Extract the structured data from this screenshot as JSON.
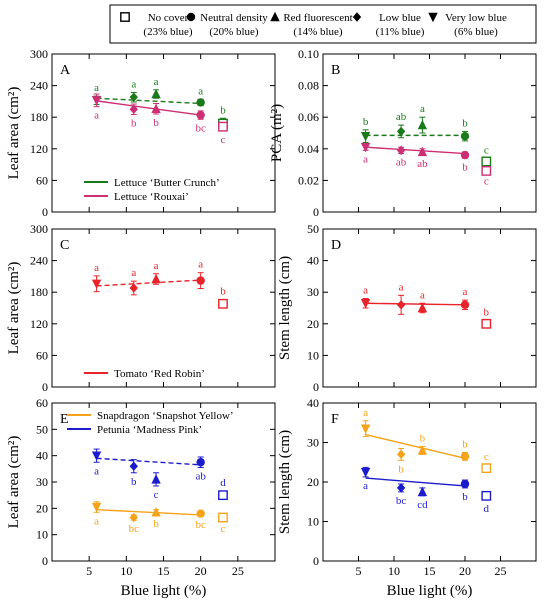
{
  "legend": {
    "items": [
      {
        "shape": "square-open",
        "line1": "No cover",
        "line2": "(23% blue)"
      },
      {
        "shape": "circle",
        "line1": "Neutral density",
        "line2": "(20% blue)"
      },
      {
        "shape": "triangle-up",
        "line1": "Red fluorescent",
        "line2": "(14% blue)"
      },
      {
        "shape": "diamond",
        "line1": "Low blue",
        "line2": "(11% blue)"
      },
      {
        "shape": "triangle-down",
        "line1": "Very low blue",
        "line2": "(6% blue)"
      }
    ]
  },
  "colors": {
    "lettuce_butter_crunch": "#1a7a1a",
    "lettuce_rouxai": "#cc2f73",
    "tomato": "#e8232a",
    "snapdragon": "#f5a31a",
    "petunia": "#1c1ccc"
  },
  "chart_data": [
    {
      "type": "scatter",
      "panel": "A",
      "xlabel": "",
      "ylabel": "Leaf area (cm²)",
      "xlim": [
        0,
        30
      ],
      "ylim": [
        0,
        300
      ],
      "xticks": [
        5,
        10,
        15,
        20,
        25
      ],
      "yticks": [
        0,
        60,
        120,
        180,
        240,
        300
      ],
      "legend": [
        {
          "name": "Lettuce ‘Butter Crunch’",
          "color": "#1a7a1a"
        },
        {
          "name": "Lettuce ‘Rouxai’",
          "color": "#cc2f73"
        }
      ],
      "series": [
        {
          "name": "Lettuce ‘Butter Crunch’",
          "color": "#1a7a1a",
          "dash": true,
          "points": [
            {
              "x": 6,
              "y": 212,
              "err": 8,
              "shape": "triangle-down",
              "letter": "a",
              "lpos": "above"
            },
            {
              "x": 11,
              "y": 218,
              "err": 9,
              "shape": "diamond",
              "letter": "a",
              "lpos": "above"
            },
            {
              "x": 14,
              "y": 224,
              "err": 8,
              "shape": "triangle-up",
              "letter": "a",
              "lpos": "above"
            },
            {
              "x": 20,
              "y": 208,
              "err": 6,
              "shape": "circle",
              "letter": "a",
              "lpos": "above"
            },
            {
              "x": 23,
              "y": 168,
              "err": 10,
              "shape": "square-open",
              "letter": "b",
              "lpos": "above"
            }
          ],
          "fit": [
            [
              6,
              216
            ],
            [
              20,
              206
            ]
          ]
        },
        {
          "name": "Lettuce ‘Rouxai’",
          "color": "#cc2f73",
          "dash": false,
          "points": [
            {
              "x": 6,
              "y": 212,
              "err": 12,
              "shape": "triangle-down",
              "letter": "a",
              "lpos": "below"
            },
            {
              "x": 11,
              "y": 195,
              "err": 10,
              "shape": "diamond",
              "letter": "b",
              "lpos": "below"
            },
            {
              "x": 14,
              "y": 196,
              "err": 10,
              "shape": "triangle-up",
              "letter": "b",
              "lpos": "below"
            },
            {
              "x": 20,
              "y": 184,
              "err": 8,
              "shape": "circle",
              "letter": "bc",
              "lpos": "below"
            },
            {
              "x": 23,
              "y": 162,
              "err": 8,
              "shape": "square-open",
              "letter": "c",
              "lpos": "below"
            }
          ],
          "fit": [
            [
              6,
              211
            ],
            [
              20,
              184
            ]
          ]
        }
      ]
    },
    {
      "type": "scatter",
      "panel": "B",
      "xlabel": "",
      "ylabel": "PCA (m²)",
      "xlim": [
        0,
        30
      ],
      "ylim": [
        0,
        0.1
      ],
      "xticks": [
        5,
        10,
        15,
        20,
        25
      ],
      "yticks": [
        0,
        0.02,
        0.04,
        0.06,
        0.08,
        0.1
      ],
      "ytick_labels": [
        "0",
        "0.02",
        "0.04",
        "0.06",
        "0.08",
        "0.10"
      ],
      "series": [
        {
          "name": "Lettuce ‘Butter Crunch’",
          "color": "#1a7a1a",
          "dash": true,
          "points": [
            {
              "x": 6,
              "y": 0.048,
              "err": 0.004,
              "shape": "triangle-down",
              "letter": "b",
              "lpos": "above"
            },
            {
              "x": 11,
              "y": 0.051,
              "err": 0.004,
              "shape": "diamond",
              "letter": "ab",
              "lpos": "above"
            },
            {
              "x": 14,
              "y": 0.055,
              "err": 0.005,
              "shape": "triangle-up",
              "letter": "a",
              "lpos": "above"
            },
            {
              "x": 20,
              "y": 0.048,
              "err": 0.003,
              "shape": "circle",
              "letter": "b",
              "lpos": "above"
            },
            {
              "x": 23,
              "y": 0.032,
              "err": 0.002,
              "shape": "square-open",
              "letter": "c",
              "lpos": "above"
            }
          ],
          "fit": [
            [
              6,
              0.0485
            ],
            [
              20,
              0.0485
            ]
          ]
        },
        {
          "name": "Lettuce ‘Rouxai’",
          "color": "#cc2f73",
          "dash": false,
          "points": [
            {
              "x": 6,
              "y": 0.041,
              "err": 0.002,
              "shape": "triangle-down",
              "letter": "a",
              "lpos": "below"
            },
            {
              "x": 11,
              "y": 0.039,
              "err": 0.002,
              "shape": "diamond",
              "letter": "ab",
              "lpos": "below"
            },
            {
              "x": 14,
              "y": 0.038,
              "err": 0.002,
              "shape": "triangle-up",
              "letter": "ab",
              "lpos": "below"
            },
            {
              "x": 20,
              "y": 0.036,
              "err": 0.002,
              "shape": "circle",
              "letter": "b",
              "lpos": "below"
            },
            {
              "x": 23,
              "y": 0.026,
              "err": 0.001,
              "shape": "square-open",
              "letter": "c",
              "lpos": "below"
            }
          ],
          "fit": [
            [
              6,
              0.041
            ],
            [
              20,
              0.037
            ]
          ]
        }
      ]
    },
    {
      "type": "scatter",
      "panel": "C",
      "xlabel": "",
      "ylabel": "Leaf area (cm²)",
      "xlim": [
        0,
        30
      ],
      "ylim": [
        0,
        300
      ],
      "xticks": [
        5,
        10,
        15,
        20,
        25
      ],
      "yticks": [
        0,
        60,
        120,
        180,
        240,
        300
      ],
      "legend": [
        {
          "name": "Tomato ‘Red Robin’",
          "color": "#e8232a"
        }
      ],
      "series": [
        {
          "name": "Tomato ‘Red Robin’",
          "color": "#e8232a",
          "dash": true,
          "points": [
            {
              "x": 6,
              "y": 196,
              "err": 15,
              "shape": "triangle-down",
              "letter": "a",
              "lpos": "above"
            },
            {
              "x": 11,
              "y": 188,
              "err": 13,
              "shape": "diamond",
              "letter": "a",
              "lpos": "above"
            },
            {
              "x": 14,
              "y": 205,
              "err": 10,
              "shape": "triangle-up",
              "letter": "a",
              "lpos": "above"
            },
            {
              "x": 20,
              "y": 202,
              "err": 15,
              "shape": "circle",
              "letter": "a",
              "lpos": "above"
            },
            {
              "x": 23,
              "y": 158,
              "err": 8,
              "shape": "square-open",
              "letter": "b",
              "lpos": "above"
            }
          ],
          "fit": [
            [
              6,
              192
            ],
            [
              20,
              203
            ]
          ]
        }
      ]
    },
    {
      "type": "scatter",
      "panel": "D",
      "xlabel": "",
      "ylabel": "Stem length (cm)",
      "xlim": [
        0,
        30
      ],
      "ylim": [
        0,
        50
      ],
      "xticks": [
        5,
        10,
        15,
        20,
        25
      ],
      "yticks": [
        0,
        10,
        20,
        30,
        40,
        50
      ],
      "series": [
        {
          "name": "Tomato ‘Red Robin’",
          "color": "#e8232a",
          "dash": false,
          "points": [
            {
              "x": 6,
              "y": 26.5,
              "err": 1.5,
              "shape": "triangle-down",
              "letter": "a",
              "lpos": "above"
            },
            {
              "x": 11,
              "y": 26.0,
              "err": 3.0,
              "shape": "diamond",
              "letter": "a",
              "lpos": "above"
            },
            {
              "x": 14,
              "y": 25.0,
              "err": 1.5,
              "shape": "triangle-up",
              "letter": "a",
              "lpos": "above"
            },
            {
              "x": 20,
              "y": 26.0,
              "err": 1.5,
              "shape": "circle",
              "letter": "a",
              "lpos": "above"
            },
            {
              "x": 23,
              "y": 20.0,
              "err": 1.0,
              "shape": "square-open",
              "letter": "b",
              "lpos": "above"
            }
          ],
          "fit": [
            [
              6,
              26.5
            ],
            [
              20,
              26.0
            ]
          ]
        }
      ]
    },
    {
      "type": "scatter",
      "panel": "E",
      "xlabel": "Blue light (%)",
      "ylabel": "Leaf area (cm²)",
      "xlim": [
        0,
        30
      ],
      "ylim": [
        0,
        60
      ],
      "xticks": [
        5,
        10,
        15,
        20,
        25
      ],
      "yticks": [
        0,
        10,
        20,
        30,
        40,
        50,
        60
      ],
      "legend": [
        {
          "name": "Snapdragon ‘Snapshot Yellow’",
          "color": "#f5a31a"
        },
        {
          "name": "Petunia ‘Madness Pink’",
          "color": "#1c1ccc"
        }
      ],
      "series": [
        {
          "name": "Petunia ‘Madness Pink’",
          "color": "#1c1ccc",
          "dash": true,
          "points": [
            {
              "x": 6,
              "y": 40,
              "err": 2.5,
              "shape": "triangle-down",
              "letter": "a",
              "lpos": "below"
            },
            {
              "x": 11,
              "y": 36,
              "err": 2.5,
              "shape": "diamond",
              "letter": "b",
              "lpos": "below"
            },
            {
              "x": 14,
              "y": 31,
              "err": 2.5,
              "shape": "triangle-up",
              "letter": "c",
              "lpos": "below"
            },
            {
              "x": 20,
              "y": 37.5,
              "err": 2,
              "shape": "circle",
              "letter": "ab",
              "lpos": "below"
            },
            {
              "x": 23,
              "y": 25,
              "err": 1.5,
              "shape": "square-open",
              "letter": "d",
              "lpos": "above"
            }
          ],
          "fit": [
            [
              6,
              39
            ],
            [
              20,
              36.5
            ]
          ]
        },
        {
          "name": "Snapdragon ‘Snapshot Yellow’",
          "color": "#f5a31a",
          "dash": false,
          "points": [
            {
              "x": 6,
              "y": 20.5,
              "err": 2,
              "shape": "triangle-down",
              "letter": "a",
              "lpos": "below"
            },
            {
              "x": 11,
              "y": 16.5,
              "err": 1,
              "shape": "diamond",
              "letter": "bc",
              "lpos": "below"
            },
            {
              "x": 14,
              "y": 18.5,
              "err": 1,
              "shape": "triangle-up",
              "letter": "b",
              "lpos": "below"
            },
            {
              "x": 20,
              "y": 18,
              "err": 1,
              "shape": "circle",
              "letter": "bc",
              "lpos": "below"
            },
            {
              "x": 23,
              "y": 16.5,
              "err": 1,
              "shape": "square-open",
              "letter": "c",
              "lpos": "below"
            }
          ],
          "fit": [
            [
              6,
              19.5
            ],
            [
              20,
              17.5
            ]
          ]
        }
      ]
    },
    {
      "type": "scatter",
      "panel": "F",
      "xlabel": "Blue light (%)",
      "ylabel": "Stem length (cm)",
      "xlim": [
        0,
        30
      ],
      "ylim": [
        0,
        40
      ],
      "xticks": [
        5,
        10,
        15,
        20,
        25
      ],
      "yticks": [
        0,
        10,
        20,
        30,
        40
      ],
      "series": [
        {
          "name": "Snapdragon ‘Snapshot Yellow’",
          "color": "#f5a31a",
          "dash": false,
          "points": [
            {
              "x": 6,
              "y": 33.5,
              "err": 2,
              "shape": "triangle-down",
              "letter": "a",
              "lpos": "above"
            },
            {
              "x": 11,
              "y": 27,
              "err": 1.5,
              "shape": "diamond",
              "letter": "b",
              "lpos": "below"
            },
            {
              "x": 14,
              "y": 28,
              "err": 1,
              "shape": "triangle-up",
              "letter": "b",
              "lpos": "above"
            },
            {
              "x": 20,
              "y": 26.5,
              "err": 1,
              "shape": "circle",
              "letter": "b",
              "lpos": "above"
            },
            {
              "x": 23,
              "y": 23.5,
              "err": 0.8,
              "shape": "square-open",
              "letter": "c",
              "lpos": "above"
            }
          ],
          "fit": [
            [
              6,
              32
            ],
            [
              20,
              26
            ]
          ]
        },
        {
          "name": "Petunia ‘Madness Pink’",
          "color": "#1c1ccc",
          "dash": false,
          "points": [
            {
              "x": 6,
              "y": 22.5,
              "err": 1.2,
              "shape": "triangle-down",
              "letter": "a",
              "lpos": "below"
            },
            {
              "x": 11,
              "y": 18.5,
              "err": 1,
              "shape": "diamond",
              "letter": "bc",
              "lpos": "below"
            },
            {
              "x": 14,
              "y": 17.5,
              "err": 1,
              "shape": "triangle-up",
              "letter": "cd",
              "lpos": "below"
            },
            {
              "x": 20,
              "y": 19.5,
              "err": 1,
              "shape": "circle",
              "letter": "b",
              "lpos": "below"
            },
            {
              "x": 23,
              "y": 16.5,
              "err": 1,
              "shape": "square-open",
              "letter": "d",
              "lpos": "below"
            }
          ],
          "fit": [
            [
              6,
              21
            ],
            [
              20,
              19
            ]
          ]
        }
      ]
    }
  ]
}
